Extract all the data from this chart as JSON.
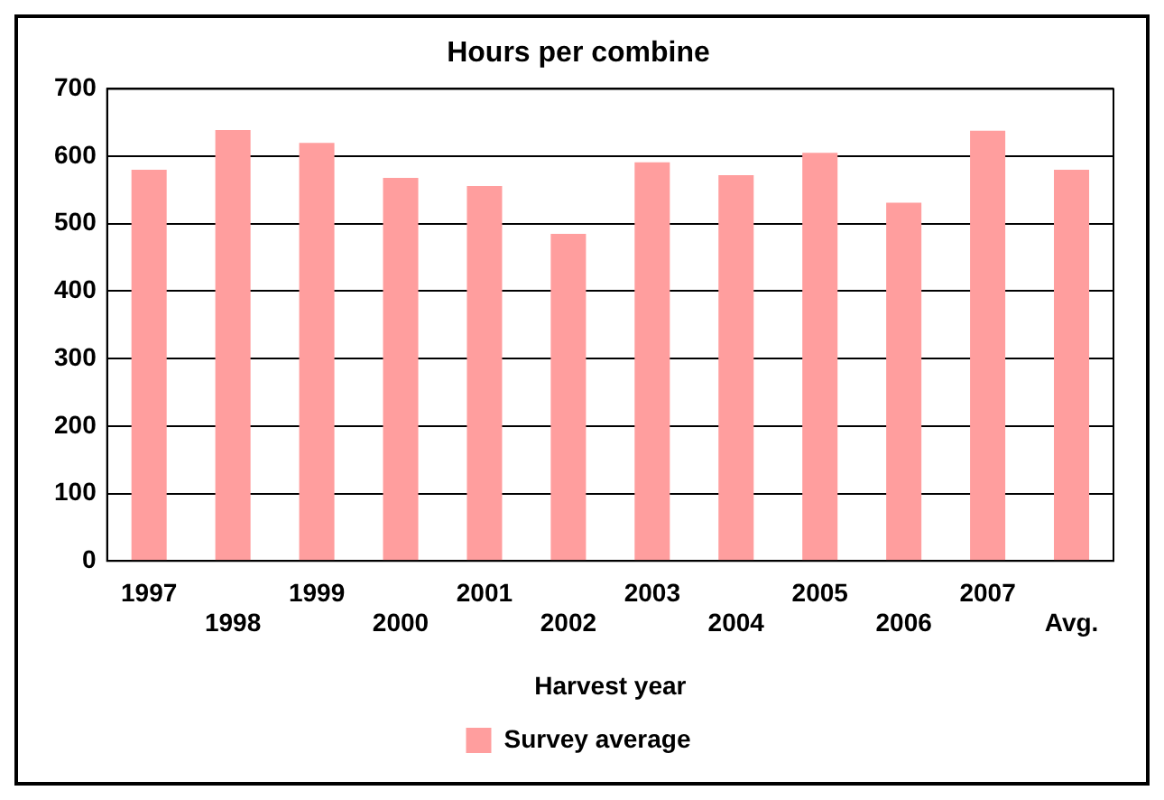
{
  "chart_data": {
    "type": "bar",
    "title": "Hours per combine",
    "xlabel": "Harvest year",
    "categories": [
      "1997",
      "1998",
      "1999",
      "2000",
      "2001",
      "2002",
      "2003",
      "2004",
      "2005",
      "2006",
      "2007",
      "Avg."
    ],
    "series": [
      {
        "name": "Survey average",
        "color": "#ff9e9e",
        "values": [
          580,
          639,
          620,
          568,
          556,
          485,
          591,
          572,
          605,
          531,
          638,
          580
        ]
      }
    ],
    "ylim": [
      0,
      700
    ],
    "yticks": [
      0,
      100,
      200,
      300,
      400,
      500,
      600,
      700
    ],
    "grid": "y",
    "legend": "bottom"
  }
}
